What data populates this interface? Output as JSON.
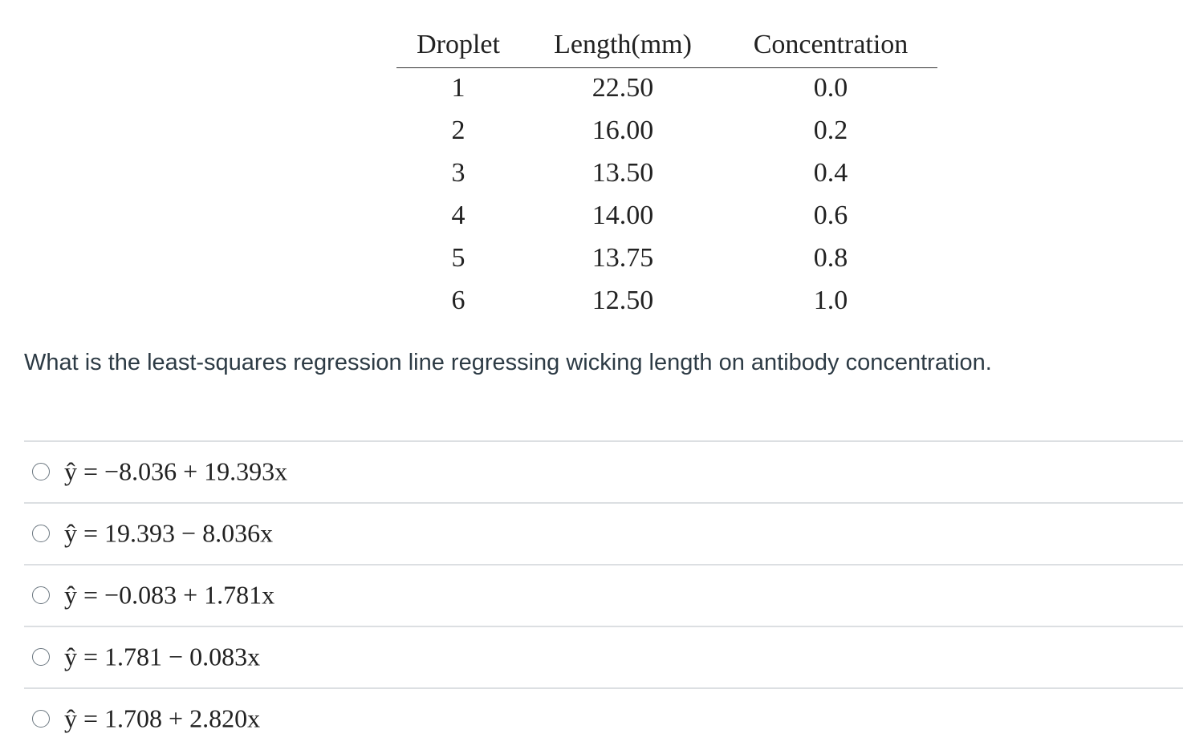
{
  "table": {
    "headers": [
      "Droplet",
      "Length(mm)",
      "Concentration"
    ],
    "rows": [
      [
        "1",
        "22.50",
        "0.0"
      ],
      [
        "2",
        "16.00",
        "0.2"
      ],
      [
        "3",
        "13.50",
        "0.4"
      ],
      [
        "4",
        "14.00",
        "0.6"
      ],
      [
        "5",
        "13.75",
        "0.8"
      ],
      [
        "6",
        "12.50",
        "1.0"
      ]
    ]
  },
  "question": "What is the least-squares regression line regressing wicking length on antibody concentration.",
  "options": [
    "ŷ = −8.036 + 19.393x",
    "ŷ = 19.393 − 8.036x",
    "ŷ = −0.083 + 1.781x",
    "ŷ = 1.781 − 0.083x",
    "ŷ = 1.708 + 2.820x"
  ]
}
